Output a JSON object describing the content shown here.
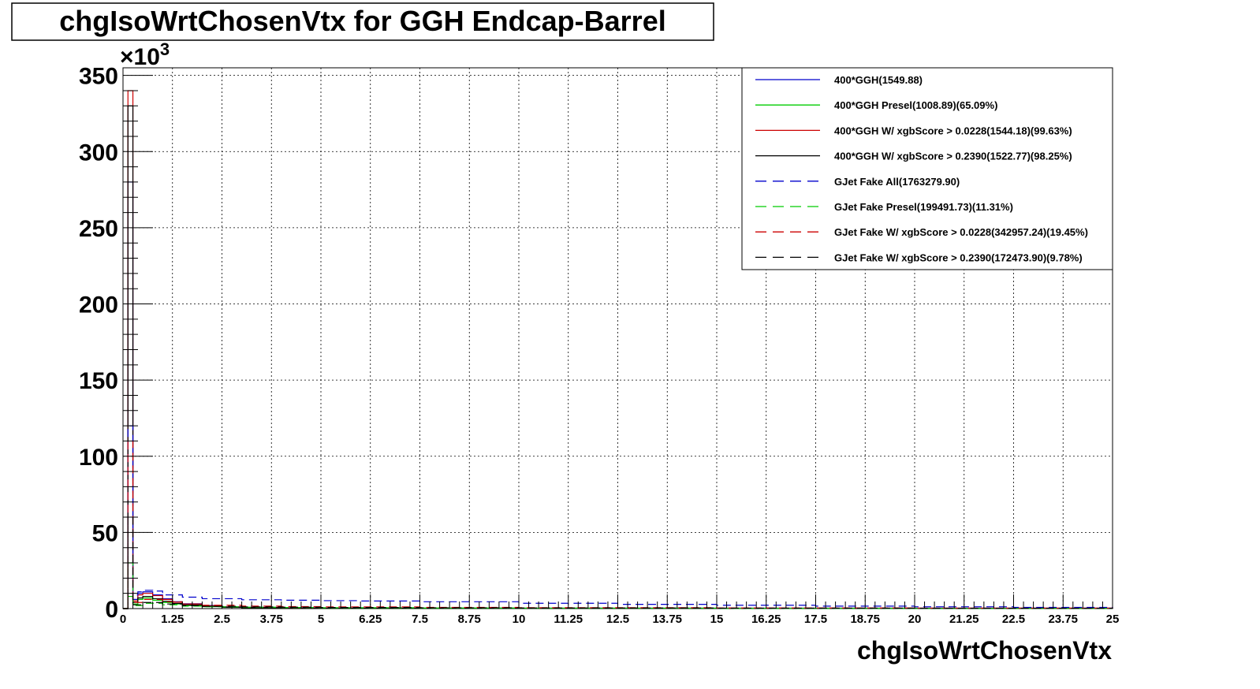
{
  "chart_data": {
    "type": "line",
    "title": "chgIsoWrtChosenVtx for GGH Endcap-Barrel",
    "xlabel": "chgIsoWrtChosenVtx",
    "ylabel": "",
    "y_multiplier_label": "×10",
    "y_multiplier_exp": "3",
    "xlim": [
      0,
      25
    ],
    "ylim": [
      0,
      355
    ],
    "grid": true,
    "legend_position": "top-right",
    "x_ticks": [
      "0",
      "1.25",
      "2.5",
      "3.75",
      "5",
      "6.25",
      "7.5",
      "8.75",
      "10",
      "11.25",
      "12.5",
      "13.75",
      "15",
      "16.25",
      "17.5",
      "18.75",
      "20",
      "21.25",
      "22.5",
      "23.75",
      "25"
    ],
    "y_ticks": [
      "0",
      "50",
      "100",
      "150",
      "200",
      "250",
      "300",
      "350"
    ],
    "series": [
      {
        "name": "400*GGH(1549.88)",
        "color": "#0000cc",
        "dash": false,
        "x": [
          0.0,
          0.125,
          0.25,
          0.375,
          0.5,
          0.625,
          0.75,
          1.0,
          1.25,
          1.5,
          2.0,
          2.5,
          3.0,
          4.0,
          5.0,
          25.0
        ],
        "y": [
          0.0,
          280.0,
          6.0,
          10.0,
          11.0,
          11.0,
          9.0,
          6.5,
          4.5,
          3.2,
          2.0,
          1.2,
          0.8,
          0.5,
          0.3,
          0.0
        ]
      },
      {
        "name": "400*GGH Presel(1008.89)(65.09%)",
        "color": "#00cc00",
        "dash": false,
        "x": [
          0.0,
          0.125,
          0.25,
          0.375,
          0.5,
          0.625,
          0.75,
          1.0,
          1.25,
          1.5,
          2.0,
          2.5,
          3.0,
          4.0,
          5.0,
          25.0
        ],
        "y": [
          0.0,
          8.0,
          3.0,
          6.0,
          7.0,
          7.0,
          5.5,
          4.0,
          3.0,
          2.0,
          1.3,
          0.8,
          0.5,
          0.3,
          0.2,
          0.0
        ]
      },
      {
        "name": "400*GGH W/ xgbScore > 0.0228(1544.18)(99.63%)",
        "color": "#cc0000",
        "dash": false,
        "x": [
          0.0,
          0.125,
          0.25,
          0.375,
          0.5,
          0.625,
          0.75,
          1.0,
          1.25,
          1.5,
          2.0,
          2.5,
          3.0,
          4.0,
          5.0,
          25.0
        ],
        "y": [
          0.0,
          340.0,
          5.0,
          9.0,
          10.0,
          10.0,
          8.5,
          6.0,
          4.2,
          3.0,
          1.8,
          1.1,
          0.7,
          0.4,
          0.3,
          0.0
        ]
      },
      {
        "name": "400*GGH W/ xgbScore > 0.2390(1522.77)(98.25%)",
        "color": "#000000",
        "dash": false,
        "x": [
          0.0,
          0.125,
          0.25,
          0.375,
          0.5,
          0.625,
          0.75,
          1.0,
          1.25,
          1.5,
          2.0,
          2.5,
          3.0,
          4.0,
          5.0,
          25.0
        ],
        "y": [
          0.0,
          330.0,
          4.0,
          7.0,
          8.0,
          8.0,
          6.5,
          4.8,
          3.4,
          2.4,
          1.5,
          0.9,
          0.6,
          0.4,
          0.2,
          0.0
        ]
      },
      {
        "name": "GJet Fake All(1763279.90)",
        "color": "#0000cc",
        "dash": true,
        "x": [
          0.0,
          0.125,
          0.25,
          0.375,
          0.5,
          0.75,
          1.0,
          1.5,
          2.0,
          3.0,
          4.0,
          5.0,
          6.0,
          7.5,
          10.0,
          12.5,
          15.0,
          17.5,
          20.0,
          22.5,
          25.0
        ],
        "y": [
          0.0,
          120.0,
          9.0,
          11.0,
          12.0,
          11.5,
          9.0,
          7.5,
          6.5,
          5.8,
          5.5,
          5.2,
          5.0,
          4.5,
          3.5,
          2.8,
          2.2,
          1.6,
          1.2,
          0.8,
          0.6
        ]
      },
      {
        "name": "GJet Fake Presel(199491.73)(11.31%)",
        "color": "#00cc00",
        "dash": true,
        "x": [
          0.0,
          0.125,
          0.25,
          0.5,
          1.0,
          1.5,
          2.0,
          3.0,
          4.0,
          5.0,
          7.5,
          10.0,
          15.0,
          20.0,
          25.0
        ],
        "y": [
          0.0,
          30.0,
          2.0,
          3.5,
          2.5,
          1.6,
          1.2,
          0.9,
          0.7,
          0.6,
          0.4,
          0.3,
          0.2,
          0.1,
          0.1
        ]
      },
      {
        "name": "GJet Fake W/ xgbScore > 0.0228(342957.24)(19.45%)",
        "color": "#cc0000",
        "dash": true,
        "x": [
          0.0,
          0.125,
          0.25,
          0.5,
          1.0,
          1.5,
          2.0,
          3.0,
          4.0,
          5.0,
          7.5,
          10.0,
          15.0,
          20.0,
          25.0
        ],
        "y": [
          0.0,
          110.0,
          4.0,
          6.0,
          4.5,
          3.0,
          2.2,
          1.6,
          1.3,
          1.1,
          0.8,
          0.6,
          0.4,
          0.3,
          0.2
        ]
      },
      {
        "name": "GJet Fake W/ xgbScore > 0.2390(172473.90)(9.78%)",
        "color": "#000000",
        "dash": true,
        "x": [
          0.0,
          0.125,
          0.25,
          0.5,
          1.0,
          1.5,
          2.0,
          3.0,
          4.0,
          5.0,
          7.5,
          10.0,
          15.0,
          20.0,
          25.0
        ],
        "y": [
          0.0,
          60.0,
          2.5,
          4.0,
          3.0,
          2.0,
          1.5,
          1.1,
          0.9,
          0.7,
          0.5,
          0.4,
          0.3,
          0.2,
          0.1
        ]
      }
    ]
  }
}
